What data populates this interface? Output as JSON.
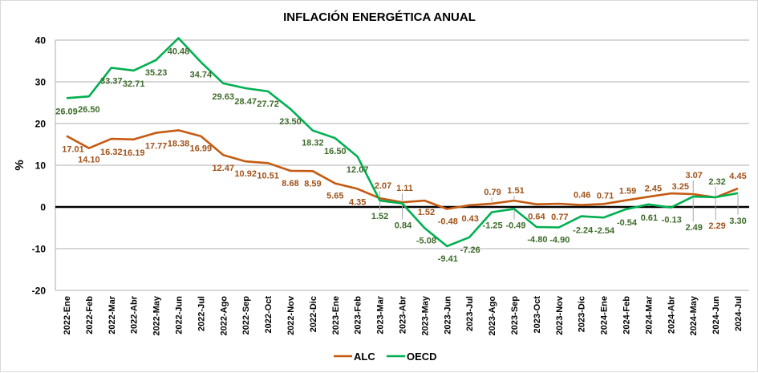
{
  "chart_data": {
    "type": "line",
    "title": "INFLACIÓN ENERGÉTICA ANUAL",
    "xlabel": "",
    "ylabel": "%",
    "ylim": [
      -20,
      40
    ],
    "yticks": [
      -20,
      -10,
      0,
      10,
      20,
      30,
      40
    ],
    "ytick_labels": [
      "-20",
      "-10",
      "0",
      "10",
      "20",
      "30",
      "40"
    ],
    "grid": true,
    "legend_position": "bottom",
    "categories": [
      "2022-Ene",
      "2022-Feb",
      "2022-Mar",
      "2022-Abr",
      "2022-May",
      "2022-Jun",
      "2022-Jul",
      "2022-Ago",
      "2022-Sep",
      "2022-Oct",
      "2022-Nov",
      "2022-Dic",
      "2023-Ene",
      "2023-Feb",
      "2023-Mar",
      "2023-Abr",
      "2023-May",
      "2023-Jun",
      "2023-Jul",
      "2023-Ago",
      "2023-Sep",
      "2023-Oct",
      "2023-Nov",
      "2023-Dic",
      "2024-Ene",
      "2024-Feb",
      "2024-Mar",
      "2024-Abr",
      "2024-May",
      "2024-Jun",
      "2024-Jul"
    ],
    "series": [
      {
        "name": "ALC",
        "color": "#c55a11",
        "label_color": "#a0521a",
        "values": [
          17.01,
          14.1,
          16.32,
          16.19,
          17.77,
          18.38,
          16.99,
          12.47,
          10.92,
          10.51,
          8.68,
          8.59,
          5.65,
          4.35,
          2.07,
          1.11,
          1.52,
          -0.48,
          0.43,
          0.79,
          1.51,
          0.64,
          0.77,
          0.46,
          0.71,
          1.59,
          2.45,
          3.25,
          3.07,
          2.29,
          4.45
        ],
        "labels": [
          "17.01",
          "14.10",
          "16.32",
          "16.19",
          "17.77",
          "18.38",
          "16.99",
          "12.47",
          "10.92",
          "10.51",
          "8.68",
          "8.59",
          "5.65",
          "4.35",
          "2.07",
          "1.11",
          "1.52",
          "-0.48",
          "0.43",
          "0.79",
          "1.51",
          "0.64",
          "0.77",
          "0.46",
          "0.71",
          "1.59",
          "2.45",
          "3.25",
          "3.07",
          "2.29",
          "4.45"
        ]
      },
      {
        "name": "OECD",
        "color": "#00b050",
        "label_color": "#3d6b2a",
        "values": [
          26.09,
          26.5,
          33.37,
          32.71,
          35.23,
          40.48,
          34.74,
          29.63,
          28.47,
          27.72,
          23.5,
          18.32,
          16.5,
          12.07,
          1.52,
          0.84,
          -5.08,
          -9.41,
          -7.26,
          -1.25,
          -0.49,
          -4.8,
          -4.9,
          -2.24,
          -2.54,
          -0.54,
          0.61,
          -0.13,
          2.49,
          2.32,
          3.3
        ],
        "labels": [
          "26.09",
          "26.50",
          "33.37",
          "32.71",
          "35.23",
          "40.48",
          "34.74",
          "29.63",
          "28.47",
          "27.72",
          "23.50",
          "18.32",
          "16.50",
          "12.07",
          "1.52",
          "0.84",
          "-5.08",
          "-9.41",
          "-7.26",
          "-1.25",
          "-0.49",
          "-4.80",
          "-4.90",
          "-2.24",
          "-2.54",
          "-0.54",
          "0.61",
          "-0.13",
          "2.49",
          "2.32",
          "3.30"
        ]
      }
    ],
    "legend": [
      "ALC",
      "OECD"
    ],
    "zero_line_color": "#000000",
    "grid_color": "#bfbfbf"
  }
}
